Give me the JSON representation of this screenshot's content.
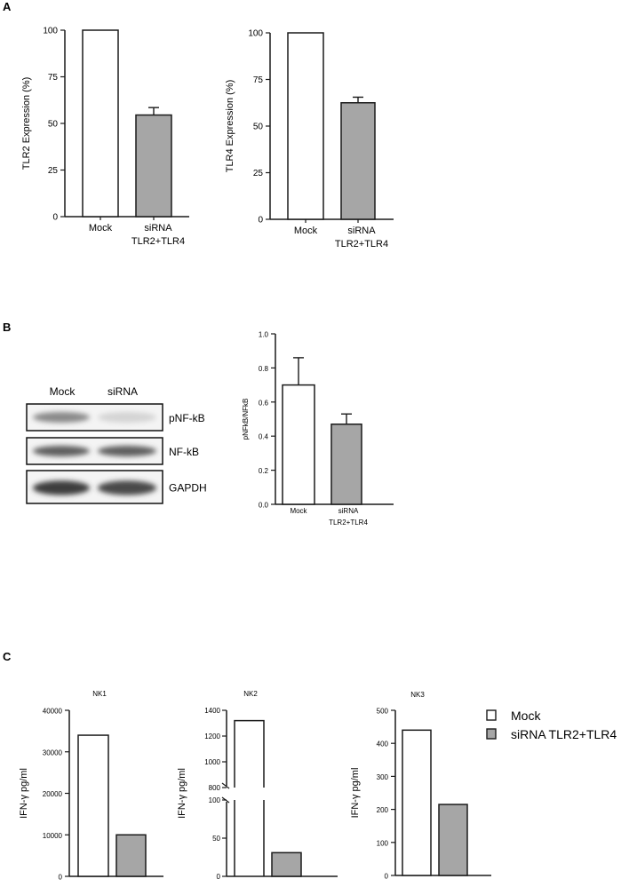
{
  "panels": {
    "A": "A",
    "B": "B",
    "C": "C"
  },
  "colors": {
    "mock_fill": "#ffffff",
    "sirna_fill": "#a6a6a6",
    "axis": "#1a1a1a"
  },
  "chart_data": [
    {
      "id": "A_TLR2",
      "type": "bar",
      "title": "",
      "categories": [
        "Mock",
        "siRNA TLR2+TLR4"
      ],
      "category_labels": [
        [
          "Mock"
        ],
        [
          "siRNA",
          "TLR2+TLR4"
        ]
      ],
      "values": [
        100,
        54.5
      ],
      "errors": [
        0,
        4
      ],
      "ylabel": "TLR2 Expression (%)",
      "xlabel": "",
      "ylim": [
        0,
        100
      ],
      "yticks": [
        0,
        25,
        50,
        75,
        100
      ],
      "grid": false
    },
    {
      "id": "A_TLR4",
      "type": "bar",
      "title": "",
      "categories": [
        "Mock",
        "siRNA TLR2+TLR4"
      ],
      "category_labels": [
        [
          "Mock"
        ],
        [
          "siRNA",
          "TLR2+TLR4"
        ]
      ],
      "values": [
        100,
        62.5
      ],
      "errors": [
        0,
        3
      ],
      "ylabel": "TLR4 Expression (%)",
      "xlabel": "",
      "ylim": [
        0,
        100
      ],
      "yticks": [
        0,
        25,
        50,
        75,
        100
      ],
      "grid": false
    },
    {
      "id": "B_ratio",
      "type": "bar",
      "title": "",
      "categories": [
        "Mock",
        "siRNA TLR2+TLR4"
      ],
      "category_labels": [
        [
          "Mock"
        ],
        [
          "siRNA",
          "TLR2+TLR4"
        ]
      ],
      "values": [
        0.7,
        0.47
      ],
      "errors": [
        0.16,
        0.06
      ],
      "ylabel": "pNFkB/NFkB",
      "xlabel": "",
      "ylim": [
        0,
        1.0
      ],
      "yticks": [
        "0.0",
        "0.2",
        "0.4",
        "0.6",
        "0.8",
        "1.0"
      ],
      "grid": false
    },
    {
      "id": "C_NK1",
      "type": "bar",
      "title": "NK1",
      "categories": [
        "Mock",
        "siRNA TLR2+TLR4"
      ],
      "values": [
        34000,
        10000
      ],
      "ylabel": "IFN-γ pg/ml",
      "xlabel": "",
      "ylim": [
        0,
        40000
      ],
      "yticks": [
        0,
        10000,
        20000,
        30000,
        40000
      ],
      "grid": false
    },
    {
      "id": "C_NK2",
      "type": "bar",
      "title": "NK2",
      "categories": [
        "Mock",
        "siRNA TLR2+TLR4"
      ],
      "values": [
        1320,
        31
      ],
      "ylabel": "IFN-γ pg/ml",
      "xlabel": "",
      "ylim": [
        0,
        1400
      ],
      "axis_break": [
        100,
        800
      ],
      "yticks_lower": [
        0,
        50,
        100
      ],
      "yticks_upper": [
        800,
        1000,
        1200,
        1400
      ],
      "grid": false
    },
    {
      "id": "C_NK3",
      "type": "bar",
      "title": "NK3",
      "categories": [
        "Mock",
        "siRNA TLR2+TLR4"
      ],
      "values": [
        440,
        215
      ],
      "ylabel": "IFN-γ pg/ml",
      "xlabel": "",
      "ylim": [
        0,
        500
      ],
      "yticks": [
        0,
        100,
        200,
        300,
        400,
        500
      ],
      "grid": false
    }
  ],
  "legend": {
    "position": "right of NK3",
    "items": [
      {
        "label": "Mock",
        "fill": "#ffffff"
      },
      {
        "label": "siRNA TLR2+TLR4",
        "fill": "#a6a6a6"
      }
    ]
  },
  "western_blot": {
    "lanes": [
      "Mock",
      "siRNA"
    ],
    "rows": [
      {
        "label": "pNF-kB",
        "intensity": [
          0.55,
          0.2
        ]
      },
      {
        "label": "NF-kB",
        "intensity": [
          0.75,
          0.75
        ]
      },
      {
        "label": "GAPDH",
        "intensity": [
          0.9,
          0.85
        ]
      }
    ]
  }
}
